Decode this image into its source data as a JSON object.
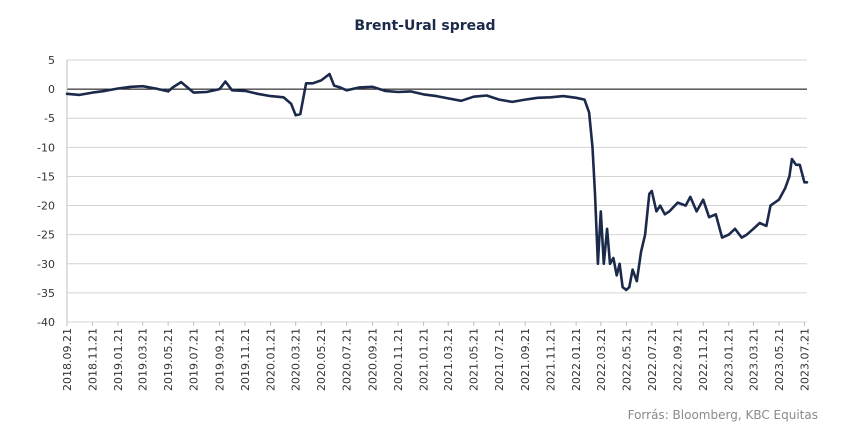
{
  "chart_data": {
    "type": "line",
    "title": "Brent-Ural spread",
    "xlabel": "",
    "ylabel": "",
    "ylim": [
      -40,
      5
    ],
    "y_ticks": [
      5,
      0,
      -5,
      -10,
      -15,
      -20,
      -25,
      -30,
      -35,
      -40
    ],
    "x_tick_labels": [
      "2018.09.21",
      "2018.11.21",
      "2019.01.21",
      "2019.03.21",
      "2019.05.21",
      "2019.07.21",
      "2019.09.21",
      "2019.11.21",
      "2020.01.21",
      "2020.03.21",
      "2020.05.21",
      "2020.07.21",
      "2020.09.21",
      "2020.11.21",
      "2021.01.21",
      "2021.03.21",
      "2021.05.21",
      "2021.07.21",
      "2021.09.21",
      "2021.11.21",
      "2022.01.21",
      "2022.03.21",
      "2022.05.21",
      "2022.07.21",
      "2022.09.21",
      "2022.11.21",
      "2023.01.21",
      "2023.03.21",
      "2023.05.21",
      "2023.07.21"
    ],
    "grid": "horizontal",
    "series": [
      {
        "color": "#1b2a4a",
        "x": [
          "2018.09.21",
          "2018.10.21",
          "2018.11.21",
          "2018.12.21",
          "2019.01.21",
          "2019.02.21",
          "2019.03.21",
          "2019.04.21",
          "2019.05.21",
          "2019.06.01",
          "2019.06.21",
          "2019.07.21",
          "2019.08.21",
          "2019.09.21",
          "2019.10.05",
          "2019.10.21",
          "2019.11.21",
          "2019.12.21",
          "2020.01.21",
          "2020.02.21",
          "2020.03.10",
          "2020.03.21",
          "2020.04.01",
          "2020.04.15",
          "2020.05.01",
          "2020.05.21",
          "2020.06.10",
          "2020.06.21",
          "2020.07.05",
          "2020.07.21",
          "2020.08.21",
          "2020.09.21",
          "2020.10.21",
          "2020.11.21",
          "2020.12.21",
          "2021.01.21",
          "2021.02.21",
          "2021.03.21",
          "2021.04.21",
          "2021.05.21",
          "2021.06.21",
          "2021.07.21",
          "2021.08.21",
          "2021.09.21",
          "2021.10.21",
          "2021.11.21",
          "2021.12.21",
          "2022.01.21",
          "2022.02.10",
          "2022.02.21",
          "2022.03.01",
          "2022.03.07",
          "2022.03.14",
          "2022.03.21",
          "2022.03.28",
          "2022.04.05",
          "2022.04.12",
          "2022.04.20",
          "2022.04.28",
          "2022.05.05",
          "2022.05.12",
          "2022.05.21",
          "2022.05.28",
          "2022.06.05",
          "2022.06.15",
          "2022.06.25",
          "2022.07.05",
          "2022.07.15",
          "2022.07.21",
          "2022.08.01",
          "2022.08.10",
          "2022.08.21",
          "2022.09.01",
          "2022.09.21",
          "2022.10.10",
          "2022.10.21",
          "2022.11.05",
          "2022.11.21",
          "2022.12.05",
          "2022.12.21",
          "2023.01.05",
          "2023.01.21",
          "2023.02.05",
          "2023.02.21",
          "2023.03.05",
          "2023.03.21",
          "2023.04.05",
          "2023.04.21",
          "2023.05.01",
          "2023.05.21",
          "2023.06.05",
          "2023.06.15",
          "2023.06.21",
          "2023.07.01",
          "2023.07.10",
          "2023.07.21",
          "2023.08.01",
          "2023.08.15"
        ],
        "values": [
          -0.8,
          -1.0,
          -0.6,
          -0.3,
          0.1,
          0.4,
          0.5,
          0.1,
          -0.4,
          0.3,
          1.2,
          -0.6,
          -0.5,
          0.0,
          1.3,
          -0.2,
          -0.3,
          -0.8,
          -1.2,
          -1.4,
          -2.5,
          -4.5,
          -4.3,
          1.0,
          1.0,
          1.5,
          2.6,
          0.6,
          0.3,
          -0.2,
          0.3,
          0.4,
          -0.3,
          -0.5,
          -0.4,
          -0.9,
          -1.2,
          -1.6,
          -2.0,
          -1.3,
          -1.1,
          -1.8,
          -2.2,
          -1.8,
          -1.5,
          -1.4,
          -1.2,
          -1.5,
          -1.8,
          -4.0,
          -10.0,
          -18.0,
          -30.0,
          -21.0,
          -30.0,
          -24.0,
          -30.0,
          -29.0,
          -32.0,
          -30.0,
          -34.0,
          -34.5,
          -34.0,
          -31.0,
          -33.0,
          -28.0,
          -25.0,
          -18.0,
          -17.5,
          -21.0,
          -20.0,
          -21.5,
          -21.0,
          -19.5,
          -20.0,
          -18.5,
          -21.0,
          -19.0,
          -22.0,
          -21.5,
          -25.5,
          -25.0,
          -24.0,
          -25.5,
          -25.0,
          -24.0,
          -23.0,
          -23.5,
          -20.0,
          -19.0,
          -17.0,
          -15.0,
          -12.0,
          -13.0,
          -13.0,
          -16.0,
          -16.0,
          -16.0
        ]
      }
    ]
  },
  "source_note": "Forrás: Bloomberg,  KBC Equitas"
}
